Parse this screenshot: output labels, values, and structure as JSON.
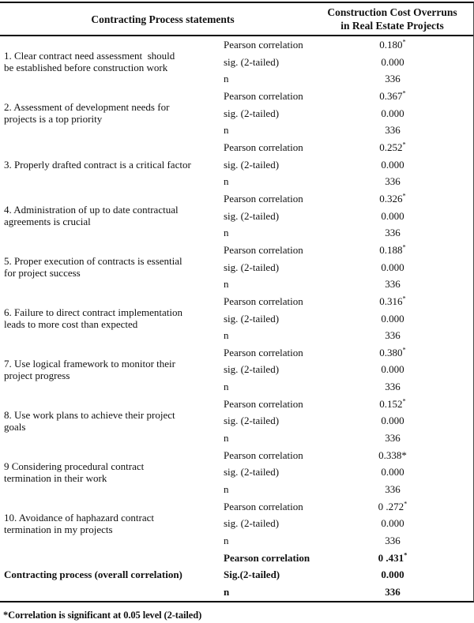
{
  "header": {
    "col1": "Contracting Process statements",
    "col2": "Construction Cost Overruns\nin Real Estate Projects"
  },
  "table": {
    "rows": [
      {
        "statement": "1. Clear contract need assessment  should\nbe established before construction work",
        "labels": [
          "Pearson correlation",
          "sig. (2-tailed)",
          "n"
        ],
        "pearson": "0.180",
        "star_sup": "*",
        "star_inline": "",
        "sig": "0.000",
        "n": "336"
      },
      {
        "statement": "2. Assessment of development needs for\nprojects is a top priority",
        "labels": [
          "Pearson correlation",
          "sig. (2-tailed)",
          "n"
        ],
        "pearson": "0.367",
        "star_sup": "*",
        "star_inline": "",
        "sig": "0.000",
        "n": "336"
      },
      {
        "statement": "3. Properly drafted contract is a critical factor",
        "labels": [
          "Pearson correlation",
          "sig. (2-tailed)",
          "n"
        ],
        "pearson": "0.252",
        "star_sup": "*",
        "star_inline": "",
        "sig": "0.000",
        "n": "336"
      },
      {
        "statement": "4. Administration of up to date contractual\nagreements is crucial",
        "labels": [
          "Pearson correlation",
          "sig. (2-tailed)",
          "n"
        ],
        "pearson": "0.326",
        "star_sup": "*",
        "star_inline": "",
        "sig": "0.000",
        "n": "336"
      },
      {
        "statement": "5. Proper execution of contracts is essential\nfor project success",
        "labels": [
          "Pearson correlation",
          "sig. (2-tailed)",
          "n"
        ],
        "pearson": "0.188",
        "star_sup": "*",
        "star_inline": "",
        "sig": "0.000",
        "n": "336"
      },
      {
        "statement": "6. Failure to direct contract implementation\nleads to more cost than expected",
        "labels": [
          "Pearson correlation",
          "sig. (2-tailed)",
          "n"
        ],
        "pearson": "0.316",
        "star_sup": "*",
        "star_inline": "",
        "sig": "0.000",
        "n": "336"
      },
      {
        "statement": "7. Use logical framework to monitor their\nproject progress",
        "labels": [
          "Pearson correlation",
          "sig. (2-tailed)",
          "n"
        ],
        "pearson": "0.380",
        "star_sup": "*",
        "star_inline": "",
        "sig": "0.000",
        "n": "336"
      },
      {
        "statement": "8. Use work plans to achieve their project\ngoals",
        "labels": [
          "Pearson correlation",
          "sig. (2-tailed)",
          "n"
        ],
        "pearson": "0.152",
        "star_sup": "*",
        "star_inline": "",
        "sig": "0.000",
        "n": "336"
      },
      {
        "statement": "9 Considering procedural contract\ntermination in their work",
        "labels": [
          "Pearson correlation",
          "sig. (2-tailed)",
          "n"
        ],
        "pearson": "0.338",
        "star_sup": "",
        "star_inline": "*",
        "sig": "0.000",
        "n": "336"
      },
      {
        "statement": "10. Avoidance of haphazard contract\ntermination in my projects",
        "labels": [
          "Pearson correlation",
          "sig. (2-tailed)",
          "n"
        ],
        "pearson": "0 .272",
        "star_sup": "*",
        "star_inline": "",
        "sig": "0.000",
        "n": "336"
      },
      {
        "statement": "Contracting process (overall correlation)",
        "bold": true,
        "labels": [
          "Pearson correlation",
          "Sig.(2-tailed)",
          "n"
        ],
        "pearson": "0 .431",
        "star_sup": "*",
        "star_inline": "",
        "sig": "0.000",
        "n": "336"
      }
    ]
  },
  "footnote": "*Correlation is significant at 0.05 level (2-tailed)"
}
